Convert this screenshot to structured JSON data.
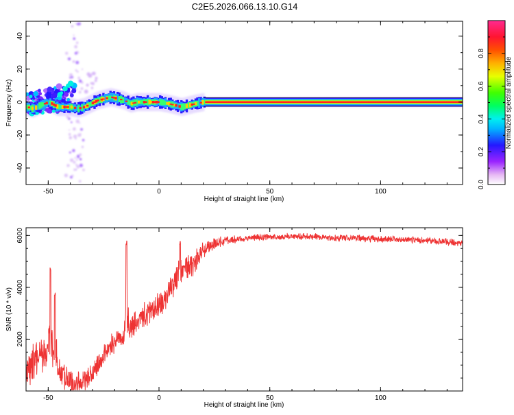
{
  "title": "C2E5.2026.066.13.10.G14",
  "chart_data": [
    {
      "type": "heatmap",
      "xlabel": "Height of straight line (km)",
      "ylabel": "Frequency (Hz)",
      "xlim": [
        -60,
        137
      ],
      "ylim": [
        -50,
        49
      ],
      "xticks": [
        -50,
        0,
        50,
        100
      ],
      "yticks": [
        -40,
        -20,
        0,
        20,
        40
      ],
      "xtick_labels": [
        "-50",
        "0",
        "50",
        "100"
      ],
      "ytick_labels": [
        "-40",
        "-20",
        "0",
        "20",
        "40"
      ],
      "colorbar": {
        "label": "Normalized spectral amplitude",
        "range": [
          0.0,
          1.0
        ],
        "ticks": [
          0.0,
          0.2,
          0.4,
          0.6,
          0.8
        ],
        "tick_labels": [
          "0.0",
          "0.2",
          "0.4",
          "0.6",
          "0.8"
        ]
      },
      "ridge": [
        [
          -60,
          -3
        ],
        [
          -57,
          -4
        ],
        [
          -54,
          -2
        ],
        [
          -50,
          0
        ],
        [
          -46,
          -3
        ],
        [
          -43,
          -3
        ],
        [
          -40,
          -3
        ],
        [
          -37,
          -4
        ],
        [
          -34,
          -3
        ],
        [
          -31,
          -1
        ],
        [
          -28,
          1
        ],
        [
          -25,
          2
        ],
        [
          -22,
          3
        ],
        [
          -19,
          2
        ],
        [
          -16,
          1
        ],
        [
          -13,
          -1
        ],
        [
          -10,
          0
        ],
        [
          -5,
          0
        ],
        [
          0,
          0
        ],
        [
          4,
          -1
        ],
        [
          7,
          -2
        ],
        [
          10,
          -3
        ],
        [
          13,
          -2
        ],
        [
          16,
          -1
        ],
        [
          20,
          0
        ],
        [
          137,
          0
        ]
      ],
      "scatter_cluster": {
        "x_range": [
          -60,
          -38
        ],
        "y_range": [
          -8,
          10
        ],
        "note": "noisy spread of low-altitude energy"
      },
      "sparse_cloud": {
        "x_range": [
          -42,
          -34
        ],
        "y_range": [
          -48,
          48
        ]
      }
    },
    {
      "type": "line",
      "xlabel": "Height of straight line (km)",
      "ylabel": "SNR (10 * v/v)",
      "xlim": [
        -60,
        137
      ],
      "ylim": [
        0,
        6300
      ],
      "xticks": [
        -50,
        0,
        50,
        100
      ],
      "yticks": [
        2000,
        4000,
        6000
      ],
      "xtick_labels": [
        "-50",
        "0",
        "50",
        "100"
      ],
      "ytick_labels": [
        "2000",
        "4000",
        "6000"
      ],
      "color": "#ee3333",
      "envelope": {
        "x": [
          -60,
          -57,
          -54,
          -51,
          -49,
          -47,
          -45,
          -42,
          -39,
          -36,
          -33,
          -30,
          -27,
          -24,
          -21,
          -18,
          -16,
          -13,
          -10,
          -7,
          -4,
          -1,
          2,
          5,
          8,
          11,
          14,
          17,
          20,
          23,
          26,
          30,
          35,
          40,
          50,
          60,
          70,
          80,
          90,
          100,
          110,
          120,
          130,
          137
        ],
        "y": [
          700,
          1100,
          1400,
          1300,
          1600,
          1100,
          700,
          500,
          350,
          250,
          450,
          700,
          1100,
          1500,
          1800,
          2100,
          2000,
          2400,
          2700,
          2900,
          3100,
          3300,
          3500,
          3900,
          4400,
          4600,
          4800,
          5100,
          5400,
          5600,
          5700,
          5800,
          5850,
          5900,
          5950,
          5950,
          5950,
          5900,
          5900,
          5850,
          5850,
          5800,
          5750,
          5700
        ]
      },
      "noise_amplitude": {
        "x": [
          -60,
          -45,
          -30,
          -10,
          10,
          25,
          40,
          137
        ],
        "y": [
          900,
          600,
          500,
          500,
          700,
          250,
          150,
          150
        ]
      },
      "spikes": [
        {
          "x": -49,
          "y": 4800
        },
        {
          "x": -47,
          "y": 3800
        },
        {
          "x": -14.7,
          "y": 5800
        },
        {
          "x": 9.5,
          "y": 5800
        }
      ]
    }
  ]
}
